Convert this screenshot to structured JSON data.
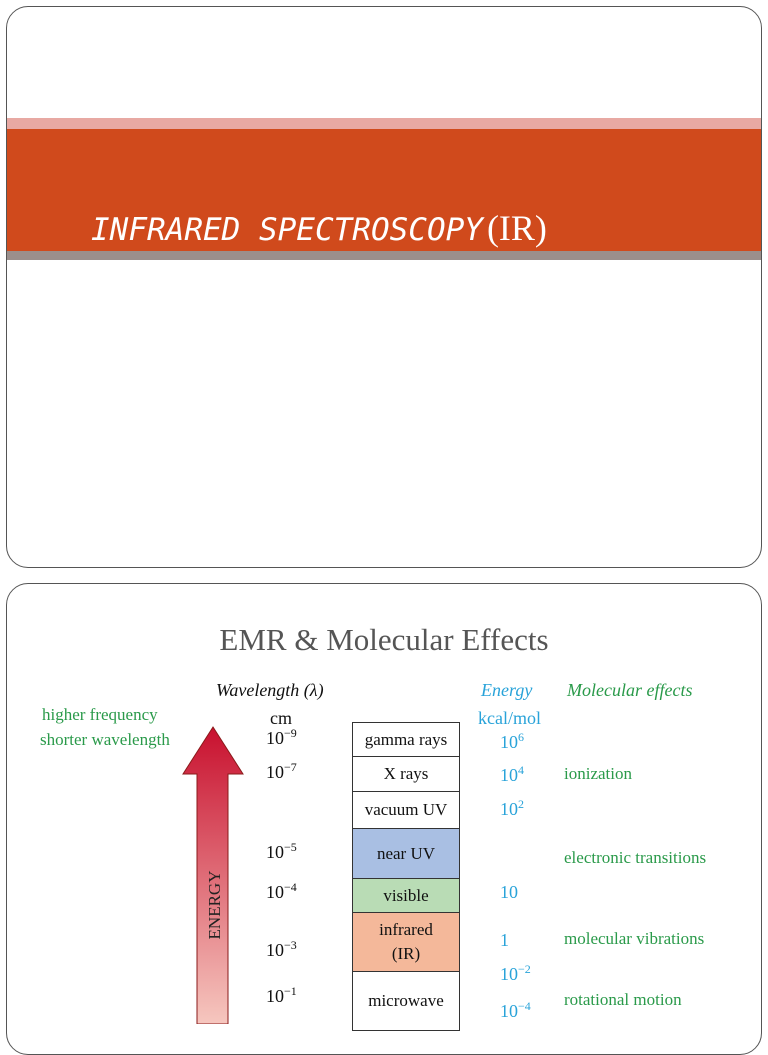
{
  "slide1": {
    "title_main": "INFRARED SPECTROSCOPY",
    "title_suffix": "(IR)"
  },
  "slide2": {
    "title": "EMR & Molecular Effects",
    "wavelength_header": "Wavelength (λ)",
    "wavelength_unit": "cm",
    "energy_header": "Energy",
    "energy_unit": "kcal/mol",
    "effects_header": "Molecular effects",
    "note": [
      "higher frequency",
      "shorter wavelength"
    ],
    "arrow_label": "ENERGY",
    "wavelengths": [
      {
        "base": "10",
        "exp": "−9"
      },
      {
        "base": "10",
        "exp": "−7"
      },
      {
        "base": "10",
        "exp": "−5"
      },
      {
        "base": "10",
        "exp": "−4"
      },
      {
        "base": "10",
        "exp": "−3"
      },
      {
        "base": "10",
        "exp": "−1"
      }
    ],
    "bands": [
      [
        "gamma rays"
      ],
      [
        "X rays"
      ],
      [
        "vacuum UV"
      ],
      [
        "near UV"
      ],
      [
        "visible"
      ],
      [
        "infrared",
        "(IR)"
      ],
      [
        "microwave"
      ]
    ],
    "energies": [
      {
        "base": "10",
        "exp": "6"
      },
      {
        "base": "10",
        "exp": "4"
      },
      {
        "base": "10",
        "exp": "2"
      },
      {
        "base": "10"
      },
      {
        "base": "1"
      },
      {
        "base": "10",
        "exp": "−2"
      },
      {
        "base": "10",
        "exp": "−4"
      }
    ],
    "effects": [
      "ionization",
      "electronic transitions",
      "molecular vibrations",
      "rotational motion"
    ]
  }
}
